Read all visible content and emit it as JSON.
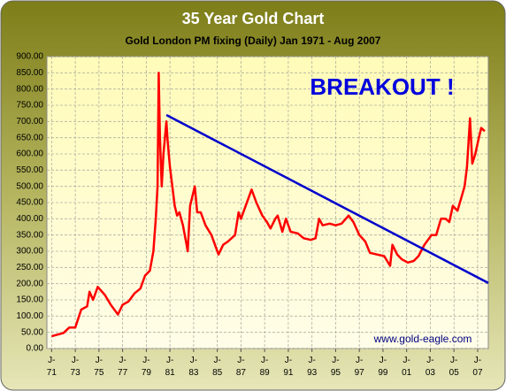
{
  "chart_data": {
    "type": "line",
    "title": "35 Year Gold Chart",
    "subtitle": "Gold London PM fixing (Daily) Jan 1971 - Aug 2007",
    "annotations": [
      "BREAKOUT !",
      "www.gold-eagle.com"
    ],
    "series": [
      {
        "color": "#ff0000",
        "x": [
          1971.0,
          1972.0,
          1972.5,
          1973.0,
          1973.5,
          1974.0,
          1974.2,
          1974.5,
          1974.9,
          1975.5,
          1976.0,
          1976.6,
          1977.0,
          1977.5,
          1978.0,
          1978.5,
          1978.9,
          1979.3,
          1979.6,
          1979.8,
          1979.95,
          1980.05,
          1980.15,
          1980.3,
          1980.45,
          1980.7,
          1980.8,
          1980.9,
          1981.0,
          1981.2,
          1981.4,
          1981.6,
          1981.8,
          1982.1,
          1982.4,
          1982.5,
          1982.7,
          1983.1,
          1983.3,
          1983.6,
          1984.0,
          1984.5,
          1985.1,
          1985.5,
          1985.9,
          1986.5,
          1986.8,
          1987.0,
          1987.6,
          1987.9,
          1988.3,
          1988.8,
          1989.2,
          1989.5,
          1989.9,
          1990.1,
          1990.5,
          1990.8,
          1991.2,
          1991.8,
          1992.3,
          1992.9,
          1993.3,
          1993.6,
          1993.9,
          1994.5,
          1995.0,
          1995.5,
          1996.1,
          1996.5,
          1997.0,
          1997.5,
          1997.9,
          1998.5,
          1999.1,
          1999.6,
          1999.8,
          2000.2,
          2000.6,
          2001.1,
          2001.6,
          2002.0,
          2002.5,
          2003.1,
          2003.5,
          2003.9,
          2004.3,
          2004.6,
          2004.9,
          2005.3,
          2005.9,
          2006.1,
          2006.35,
          2006.55,
          2006.8,
          2007.1,
          2007.3,
          2007.6
        ],
        "values": [
          38,
          48,
          65,
          65,
          120,
          130,
          175,
          150,
          190,
          165,
          135,
          105,
          135,
          145,
          170,
          185,
          225,
          240,
          300,
          400,
          500,
          850,
          650,
          500,
          600,
          700,
          640,
          600,
          560,
          500,
          440,
          410,
          420,
          380,
          320,
          300,
          440,
          500,
          420,
          420,
          380,
          350,
          290,
          320,
          330,
          350,
          420,
          400,
          460,
          490,
          450,
          410,
          390,
          370,
          400,
          410,
          360,
          400,
          360,
          355,
          340,
          335,
          340,
          400,
          380,
          385,
          380,
          385,
          410,
          390,
          350,
          330,
          295,
          290,
          285,
          255,
          320,
          290,
          275,
          265,
          270,
          285,
          320,
          350,
          350,
          400,
          400,
          390,
          440,
          425,
          500,
          560,
          710,
          570,
          600,
          650,
          680,
          670
        ]
      }
    ],
    "trendline": {
      "color": "#0000cc",
      "x": [
        1980.7,
        2007.9
      ],
      "values": [
        720,
        202
      ]
    },
    "xlim": [
      1970.6,
      2007.9
    ],
    "ylim": [
      0,
      900
    ],
    "xticks": [
      {
        "value": 1971,
        "label": "J-\n71"
      },
      {
        "value": 1973,
        "label": "J-\n73"
      },
      {
        "value": 1975,
        "label": "J-\n75"
      },
      {
        "value": 1977,
        "label": "J-\n77"
      },
      {
        "value": 1979,
        "label": "J-\n79"
      },
      {
        "value": 1981,
        "label": "J-\n81"
      },
      {
        "value": 1983,
        "label": "J-\n83"
      },
      {
        "value": 1985,
        "label": "J-\n85"
      },
      {
        "value": 1987,
        "label": "J-\n87"
      },
      {
        "value": 1989,
        "label": "J-\n89"
      },
      {
        "value": 1991,
        "label": "J-\n91"
      },
      {
        "value": 1993,
        "label": "J-\n93"
      },
      {
        "value": 1995,
        "label": "J-\n95"
      },
      {
        "value": 1997,
        "label": "J-\n97"
      },
      {
        "value": 1999,
        "label": "J-\n99"
      },
      {
        "value": 2001,
        "label": "J-\n01"
      },
      {
        "value": 2003,
        "label": "J-\n03"
      },
      {
        "value": 2005,
        "label": "J-\n05"
      },
      {
        "value": 2007,
        "label": "J-\n07"
      }
    ],
    "yticks": [
      {
        "value": 0,
        "label": "0.00"
      },
      {
        "value": 50,
        "label": "50.00"
      },
      {
        "value": 100,
        "label": "100.00"
      },
      {
        "value": 150,
        "label": "150.00"
      },
      {
        "value": 200,
        "label": "200.00"
      },
      {
        "value": 250,
        "label": "250.00"
      },
      {
        "value": 300,
        "label": "300.00"
      },
      {
        "value": 350,
        "label": "350.00"
      },
      {
        "value": 400,
        "label": "400.00"
      },
      {
        "value": 450,
        "label": "450.00"
      },
      {
        "value": 500,
        "label": "500.00"
      },
      {
        "value": 550,
        "label": "550.00"
      },
      {
        "value": 600,
        "label": "600.00"
      },
      {
        "value": 650,
        "label": "650.00"
      },
      {
        "value": 700,
        "label": "700.00"
      },
      {
        "value": 750,
        "label": "750.00"
      },
      {
        "value": 800,
        "label": "800.00"
      },
      {
        "value": 850,
        "label": "850.00"
      },
      {
        "value": 900,
        "label": "900.00"
      }
    ],
    "grid": true
  }
}
